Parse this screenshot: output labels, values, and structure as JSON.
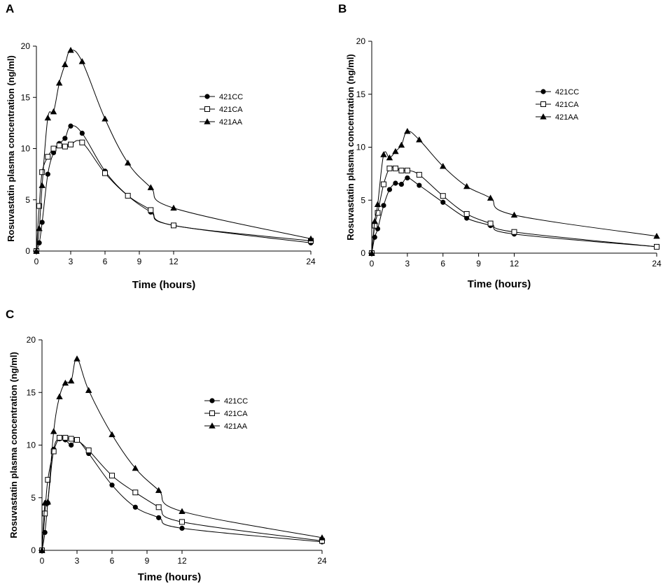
{
  "chart_data": [
    {
      "type": "line",
      "panel": "A",
      "xlabel": "Time (hours)",
      "ylabel": "Rosuvastatin plasma concentration (ng/ml)",
      "xlim": [
        0,
        24
      ],
      "ylim": [
        0,
        20
      ],
      "xticks": [
        0,
        3,
        6,
        9,
        12,
        24
      ],
      "yticks": [
        0,
        5,
        10,
        15,
        20
      ],
      "legend": "center-right",
      "series": [
        {
          "name": "421CC",
          "marker": "circle",
          "x": [
            0,
            0.25,
            0.5,
            1,
            1.5,
            2,
            2.5,
            3,
            4,
            6,
            8,
            10,
            12,
            24
          ],
          "y": [
            0,
            0.8,
            2.8,
            7.5,
            9.6,
            10.5,
            11.0,
            12.2,
            11.5,
            7.8,
            5.4,
            3.8,
            2.5,
            0.8
          ]
        },
        {
          "name": "421CA",
          "marker": "square",
          "x": [
            0,
            0.25,
            0.5,
            1,
            1.5,
            2,
            2.5,
            3,
            4,
            6,
            8,
            10,
            12,
            24
          ],
          "y": [
            0,
            4.4,
            7.7,
            9.2,
            10.0,
            10.3,
            10.2,
            10.4,
            10.6,
            7.6,
            5.4,
            4.0,
            2.5,
            1.0
          ]
        },
        {
          "name": "421AA",
          "marker": "triangle",
          "x": [
            0,
            0.25,
            0.5,
            1,
            1.5,
            2,
            2.5,
            3,
            4,
            6,
            8,
            10,
            12,
            24
          ],
          "y": [
            0,
            2.2,
            6.4,
            13.0,
            13.6,
            16.4,
            18.2,
            19.6,
            18.5,
            12.9,
            8.6,
            6.2,
            4.2,
            1.2
          ]
        }
      ]
    },
    {
      "type": "line",
      "panel": "B",
      "xlabel": "Time (hours)",
      "ylabel": "Rosuvastatin plasma concentration (ng/ml)",
      "xlim": [
        0,
        24
      ],
      "ylim": [
        0,
        20
      ],
      "xticks": [
        0,
        3,
        6,
        9,
        12,
        24
      ],
      "yticks": [
        0,
        5,
        10,
        15,
        20
      ],
      "legend": "center-right",
      "series": [
        {
          "name": "421CC",
          "marker": "circle",
          "x": [
            0,
            0.25,
            0.5,
            1,
            1.5,
            2,
            2.5,
            3,
            4,
            6,
            8,
            10,
            12,
            24
          ],
          "y": [
            0,
            1.5,
            2.3,
            4.5,
            6.0,
            6.6,
            6.5,
            7.1,
            6.4,
            4.8,
            3.3,
            2.6,
            1.8,
            0.6
          ]
        },
        {
          "name": "421CA",
          "marker": "square",
          "x": [
            0,
            0.25,
            0.5,
            1,
            1.5,
            2,
            2.5,
            3,
            4,
            6,
            8,
            10,
            12,
            24
          ],
          "y": [
            0,
            2.6,
            3.8,
            6.5,
            8.0,
            8.0,
            7.8,
            7.8,
            7.4,
            5.4,
            3.7,
            2.8,
            2.0,
            0.6
          ]
        },
        {
          "name": "421AA",
          "marker": "triangle",
          "x": [
            0,
            0.25,
            0.5,
            1,
            1.5,
            2,
            2.5,
            3,
            4,
            6,
            8,
            10,
            12,
            24
          ],
          "y": [
            0,
            3.0,
            4.6,
            9.3,
            9.0,
            9.6,
            10.2,
            11.5,
            10.7,
            8.2,
            6.3,
            5.2,
            3.6,
            1.6
          ]
        }
      ]
    },
    {
      "type": "line",
      "panel": "C",
      "xlabel": "Time (hours)",
      "ylabel": "Rosuvastatin plasma concentration (ng/ml)",
      "xlim": [
        0,
        24
      ],
      "ylim": [
        0,
        20
      ],
      "xticks": [
        0,
        3,
        6,
        9,
        12,
        24
      ],
      "yticks": [
        0,
        5,
        10,
        15,
        20
      ],
      "legend": "center-right",
      "series": [
        {
          "name": "421CC",
          "marker": "circle",
          "x": [
            0,
            0.25,
            0.5,
            1,
            1.5,
            2,
            2.5,
            3,
            4,
            6,
            8,
            10,
            12,
            24
          ],
          "y": [
            0,
            1.7,
            4.5,
            9.6,
            10.6,
            10.5,
            10.0,
            10.5,
            9.2,
            6.2,
            4.1,
            3.1,
            2.1,
            0.8
          ]
        },
        {
          "name": "421CA",
          "marker": "square",
          "x": [
            0,
            0.25,
            0.5,
            1,
            1.5,
            2,
            2.5,
            3,
            4,
            6,
            8,
            10,
            12,
            24
          ],
          "y": [
            0,
            3.5,
            6.7,
            9.4,
            10.7,
            10.7,
            10.6,
            10.5,
            9.5,
            7.1,
            5.5,
            4.1,
            2.7,
            0.9
          ]
        },
        {
          "name": "421AA",
          "marker": "triangle",
          "x": [
            0,
            0.25,
            0.5,
            1,
            1.5,
            2,
            2.5,
            3,
            4,
            6,
            8,
            10,
            12,
            24
          ],
          "y": [
            0,
            4.5,
            4.6,
            11.3,
            14.6,
            15.9,
            16.1,
            18.2,
            15.2,
            11.0,
            7.8,
            5.7,
            3.7,
            1.2
          ]
        }
      ]
    }
  ]
}
